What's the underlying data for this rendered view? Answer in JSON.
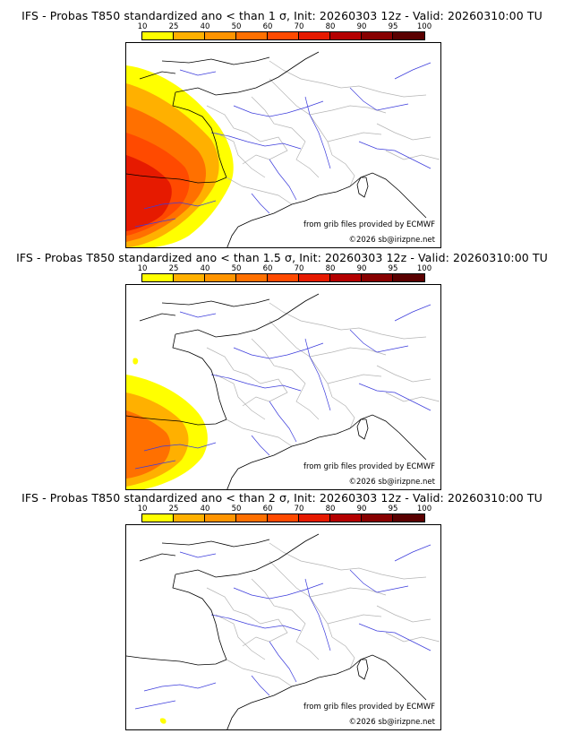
{
  "scale": {
    "labels": [
      "10",
      "25",
      "40",
      "50",
      "60",
      "70",
      "80",
      "90",
      "95",
      "100"
    ],
    "colors": [
      "#ffff00",
      "#ffd700",
      "#ffb000",
      "#ff9400",
      "#ff7000",
      "#ff4a00",
      "#e61a00",
      "#b40000",
      "#870000",
      "#5a0000"
    ]
  },
  "colors": {
    "coast": "#000000",
    "borders": "#b4b4b4",
    "rivers": "#3c3cdc",
    "frame": "#000000"
  },
  "panels": [
    {
      "title": "IFS - Probas T850  standardized ano < than 1 σ, Init: 20260303 12z - Valid: 20260310:00 TU",
      "source": "from grib files provided by ECMWF",
      "copyright": "©2026 sb@irizpne.net",
      "level": "high"
    },
    {
      "title": "IFS - Probas T850  standardized ano < than 1.5 σ, Init: 20260303 12z - Valid: 20260310:00 TU",
      "source": "from grib files provided by ECMWF",
      "copyright": "©2026 sb@irizpne.net",
      "level": "mid"
    },
    {
      "title": "IFS - Probas T850  standardized ano < than 2 σ, Init: 20260303 12z - Valid: 20260310:00 TU",
      "source": "from grib files provided by ECMWF",
      "copyright": "©2026 sb@irizpne.net",
      "level": "low"
    }
  ]
}
